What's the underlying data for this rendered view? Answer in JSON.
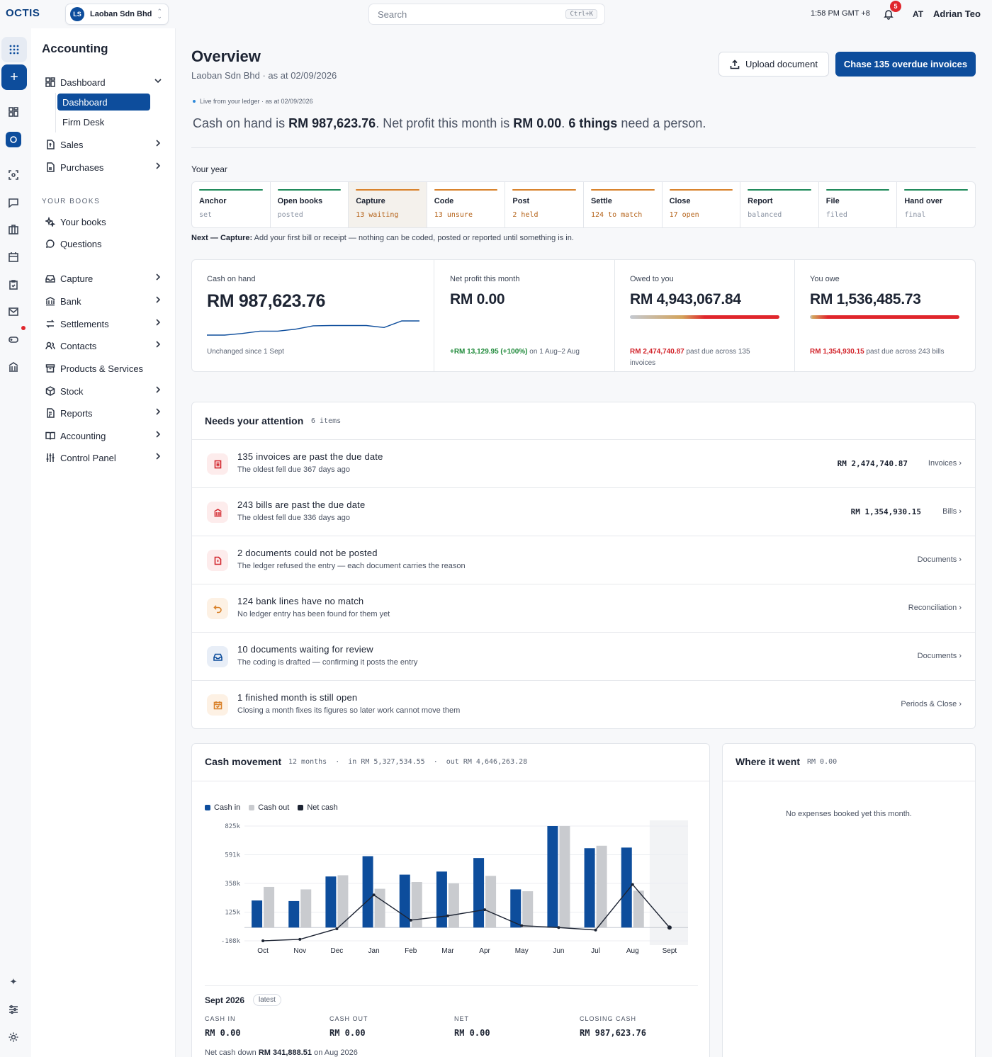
{
  "topbar": {
    "logo": "OCTIS",
    "company_initials": "LS",
    "company_name": "Laoban Sdn Bhd",
    "search_placeholder": "Search",
    "search_shortcut": "Ctrl+K",
    "clock": "1:58 PM GMT +8",
    "notification_count": "5",
    "user_initials": "AT",
    "user_name": "Adrian Teo"
  },
  "sidebar": {
    "title": "Accounting",
    "dashboard": "Dashboard",
    "dashboard_active": "Dashboard",
    "firm_desk": "Firm Desk",
    "sales": "Sales",
    "purchases": "Purchases",
    "section_your_books": "YOUR BOOKS",
    "your_books": "Your books",
    "questions": "Questions",
    "capture": "Capture",
    "bank": "Bank",
    "settlements": "Settlements",
    "contacts": "Contacts",
    "products": "Products & Services",
    "stock": "Stock",
    "reports": "Reports",
    "accounting": "Accounting",
    "control_panel": "Control Panel"
  },
  "overview": {
    "title": "Overview",
    "subtitle": "Laoban Sdn Bhd · as at 02/09/2026",
    "upload_button": "Upload document",
    "chase_button": "Chase 135 overdue invoices",
    "live_note": "Live from your ledger · as at 02/09/2026",
    "headline": {
      "p1": "Cash on hand is ",
      "cash": "RM 987,623.76",
      "p2": ". Net profit this month is ",
      "profit": "RM 0.00",
      "p3": ". ",
      "things": "6 things",
      "p4": " need a person."
    }
  },
  "year": {
    "label": "Your year",
    "stages": [
      {
        "name": "Anchor",
        "status": "set",
        "color": "#1f8a5b"
      },
      {
        "name": "Open books",
        "status": "posted",
        "color": "#1f8a5b"
      },
      {
        "name": "Capture",
        "status": "13 waiting",
        "color": "#d9822b",
        "active": true
      },
      {
        "name": "Code",
        "status": "13 unsure",
        "color": "#d9822b"
      },
      {
        "name": "Post",
        "status": "2 held",
        "color": "#d9822b"
      },
      {
        "name": "Settle",
        "status": "124 to match",
        "color": "#d9822b"
      },
      {
        "name": "Close",
        "status": "17 open",
        "color": "#d9822b"
      },
      {
        "name": "Report",
        "status": "balanced",
        "color": "#1f8a5b"
      },
      {
        "name": "File",
        "status": "filed",
        "color": "#1f8a5b"
      },
      {
        "name": "Hand over",
        "status": "final",
        "color": "#1f8a5b"
      }
    ],
    "next_label": "Next — Capture:",
    "next_text": " Add your first bill or receipt — nothing can be coded, posted or reported until something is in."
  },
  "kpis": {
    "cash_label": "Cash on hand",
    "cash_value": "RM 987,623.76",
    "cash_note": "Unchanged since 1 Sept",
    "cash_trend": [
      0,
      0,
      0.5,
      1.2,
      1.2,
      1.8,
      2.8,
      2.9,
      2.9,
      2.9,
      2.3,
      4.3,
      4.3
    ],
    "profit_label": "Net profit this month",
    "profit_value": "RM 0.00",
    "profit_change": "+RM 13,129.95 (+100%)",
    "profit_period": " on 1 Aug–2 Aug",
    "owed_label": "Owed to you",
    "owed_value": "RM 4,943,067.84",
    "owed_overdue_fraction": 0.5,
    "owed_overdue": "RM 2,474,740.87",
    "owed_note": " past due across 135 invoices",
    "owe_label": "You owe",
    "owe_value": "RM 1,536,485.73",
    "owe_overdue_fraction": 0.88,
    "owe_overdue": "RM 1,354,930.15",
    "owe_note": " past due across 243 bills"
  },
  "attention": {
    "title": "Needs your attention",
    "count": "6 items",
    "items": [
      {
        "title": "135 invoices are past the due date",
        "sub": "The oldest fell due 367 days ago",
        "amount": "RM 2,474,740.87",
        "link": "Invoices ›",
        "icon": "invoice-icon"
      },
      {
        "title": "243 bills are past the due date",
        "sub": "The oldest fell due 336 days ago",
        "amount": "RM 1,354,930.15",
        "link": "Bills ›",
        "icon": "bank-icon"
      },
      {
        "title": "2 documents could not be posted",
        "sub": "The ledger refused the entry — each document carries the reason",
        "amount": "",
        "link": "Documents ›",
        "icon": "document-alert-icon"
      },
      {
        "title": "124 bank lines have no match",
        "sub": "No ledger entry has been found for them yet",
        "amount": "",
        "link": "Reconciliation ›",
        "icon": "undo-arrow-icon"
      },
      {
        "title": "10 documents waiting for review",
        "sub": "The coding is drafted — confirming it posts the entry",
        "amount": "",
        "link": "Documents ›",
        "icon": "inbox-icon"
      },
      {
        "title": "1 finished month is still open",
        "sub": "Closing a month fixes its figures so later work cannot move them",
        "amount": "",
        "link": "Periods & Close ›",
        "icon": "calendar-check-icon"
      }
    ]
  },
  "cash_movement": {
    "title": "Cash movement",
    "meta": "12 months  ·  in RM 5,327,534.55  ·  out RM 4,646,263.28",
    "legend": {
      "in": "Cash in",
      "out": "Cash out",
      "net": "Net cash"
    },
    "colors": {
      "in": "#0d4d9c",
      "out": "#c9cbcf",
      "net": "#1d2433"
    },
    "month_label": "Sept 2026",
    "month_badge": "latest",
    "cash_in_label": "CASH IN",
    "cash_in": "RM 0.00",
    "cash_out_label": "CASH OUT",
    "cash_out": "RM 0.00",
    "net_label": "NET",
    "net": "RM 0.00",
    "closing_label": "CLOSING CASH",
    "closing": "RM 987,623.76",
    "foot_pre": "Net cash down ",
    "foot_amount": "RM 341,888.51",
    "foot_post": " on Aug 2026"
  },
  "chart_data": {
    "type": "bar",
    "categories": [
      "Oct",
      "Nov",
      "Dec",
      "Jan",
      "Feb",
      "Mar",
      "Apr",
      "May",
      "Jun",
      "Jul",
      "Aug",
      "Sept"
    ],
    "yticks": [
      "825k",
      "591k",
      "358k",
      "125k",
      "-108k"
    ],
    "ylim": [
      -108000,
      825000
    ],
    "series": [
      {
        "name": "Cash in",
        "values": [
          220000,
          215000,
          415000,
          580000,
          430000,
          455000,
          565000,
          310000,
          825000,
          645000,
          650000,
          0
        ]
      },
      {
        "name": "Cash out",
        "values": [
          330000,
          310000,
          425000,
          315000,
          370000,
          360000,
          420000,
          295000,
          825000,
          665000,
          300000,
          0
        ]
      },
      {
        "name": "Net cash",
        "values": [
          -108000,
          -96000,
          -10000,
          265000,
          60000,
          95000,
          145000,
          15000,
          0,
          -20000,
          350000,
          0
        ]
      }
    ]
  },
  "where": {
    "title": "Where it went",
    "value": "RM 0.00",
    "empty": "No expenses booked yet this month."
  }
}
